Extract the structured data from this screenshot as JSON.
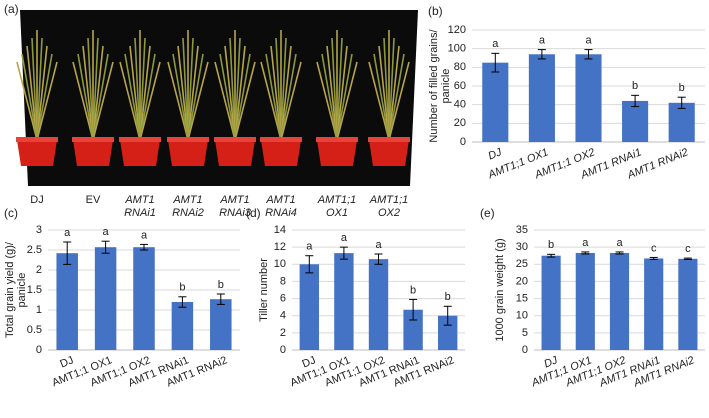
{
  "photo": {
    "panel": "(a)",
    "labels": [
      [
        "DJ"
      ],
      [
        "EV"
      ],
      [
        "AMT1",
        "RNAi1"
      ],
      [
        "AMT1",
        "RNAi2"
      ],
      [
        "AMT1",
        "RNAi3"
      ],
      [
        "AMT1",
        "RNAi4"
      ],
      [
        "AMT1;1",
        "OX1"
      ],
      [
        "AMT1;1",
        "OX2"
      ]
    ]
  },
  "chart_data": [
    {
      "type": "bar",
      "panel": "(b)",
      "y_label": [
        "Number of filled grains/",
        "panicle"
      ],
      "categories": [
        "DJ",
        "AMT1;1 OX1",
        "AMT1;1 OX2",
        "AMT1 RNAi1",
        "AMT1 RNAi2"
      ],
      "italic_categories": true,
      "values": [
        85,
        94,
        94,
        44,
        42
      ],
      "errors": [
        10,
        5,
        5,
        6,
        6
      ],
      "annotations": [
        "a",
        "a",
        "a",
        "b",
        "b"
      ],
      "color": "#4472c4",
      "ylim": [
        0,
        120
      ],
      "yticks": [
        0,
        20,
        40,
        60,
        80,
        100,
        120
      ],
      "grid": true
    },
    {
      "type": "bar",
      "panel": "(c)",
      "y_label": [
        "Total grain yield (g)/",
        "panicle"
      ],
      "categories": [
        "DJ",
        "AMT1;1 OX1",
        "AMT1;1 OX2",
        "AMT1 RNAi1",
        "AMT1 RNAi2"
      ],
      "italic_categories": false,
      "values": [
        2.42,
        2.57,
        2.57,
        1.2,
        1.27
      ],
      "errors": [
        0.28,
        0.15,
        0.07,
        0.13,
        0.13
      ],
      "annotations": [
        "a",
        "a",
        "a",
        "b",
        "b"
      ],
      "color": "#4472c4",
      "ylim": [
        0,
        3
      ],
      "yticks": [
        0,
        0.5,
        1,
        1.5,
        2,
        2.5,
        3
      ],
      "grid": true
    },
    {
      "type": "bar",
      "panel": "(d)",
      "y_label": [
        "Tiller number"
      ],
      "categories": [
        "DJ",
        "AMT1;1 OX1",
        "AMT1;1 OX2",
        "AMT1 RNAi1",
        "AMT1 RNAi2"
      ],
      "italic_categories": false,
      "values": [
        10,
        11.3,
        10.6,
        4.7,
        4
      ],
      "errors": [
        1,
        0.7,
        0.6,
        1.2,
        1.1
      ],
      "annotations": [
        "a",
        "a",
        "a",
        "b",
        "b"
      ],
      "color": "#4472c4",
      "ylim": [
        0,
        14
      ],
      "yticks": [
        0,
        2,
        4,
        6,
        8,
        10,
        12,
        14
      ],
      "grid": true
    },
    {
      "type": "bar",
      "panel": "(e)",
      "y_label": [
        "1000 grain weight (g)"
      ],
      "categories": [
        "DJ",
        "AMT1;1 OX1",
        "AMT1;1 OX2",
        "AMT1 RNAi1",
        "AMT1 RNAi2"
      ],
      "italic_categories": true,
      "values": [
        27.5,
        28.3,
        28.3,
        26.7,
        26.6
      ],
      "errors": [
        0.4,
        0.3,
        0.3,
        0.3,
        0.2
      ],
      "annotations": [
        "b",
        "a",
        "a",
        "c",
        "c"
      ],
      "color": "#4472c4",
      "ylim": [
        0,
        35
      ],
      "yticks": [
        0,
        5,
        10,
        15,
        20,
        25,
        30,
        35
      ],
      "grid": true
    }
  ]
}
